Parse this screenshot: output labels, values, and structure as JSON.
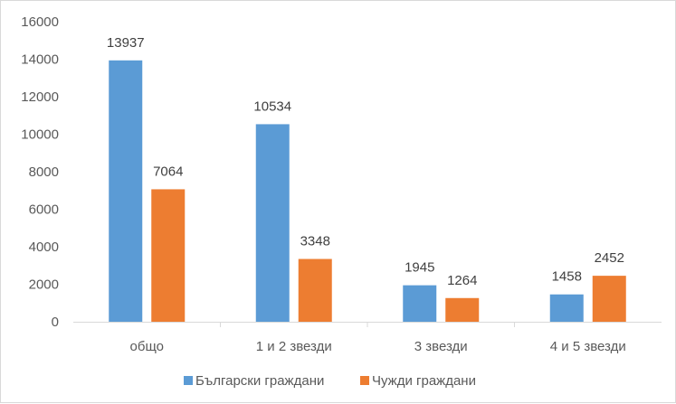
{
  "chart_data": {
    "type": "bar",
    "categories": [
      "общо",
      "1 и 2 звезди",
      "3 звезди",
      "4 и 5 звезди"
    ],
    "series": [
      {
        "name": "Български граждани",
        "values": [
          13937,
          10534,
          1945,
          1458
        ]
      },
      {
        "name": "Чужди граждани",
        "values": [
          7064,
          3348,
          1264,
          2452
        ]
      }
    ],
    "yticks": [
      "0",
      "2000",
      "4000",
      "6000",
      "8000",
      "10000",
      "12000",
      "14000",
      "16000"
    ],
    "ylim": [
      0,
      16000
    ],
    "colors": [
      "#5b9bd5",
      "#ed7d31"
    ],
    "grid": false,
    "legend_position": "bottom"
  }
}
